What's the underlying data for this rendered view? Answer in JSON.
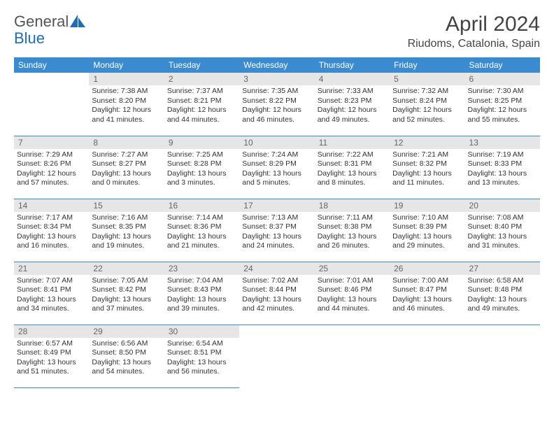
{
  "brand": {
    "part1": "General",
    "part2": "Blue"
  },
  "colors": {
    "header_bg": "#3b8bd0",
    "header_fg": "#ffffff",
    "daynum_bg": "#e6e6e6",
    "daynum_fg": "#666666",
    "body_text": "#333333",
    "rule": "#3b8bd0",
    "logo_gray": "#666666",
    "logo_blue": "#1f6db3"
  },
  "title": "April 2024",
  "location": "Riudoms, Catalonia, Spain",
  "weekdays": [
    "Sunday",
    "Monday",
    "Tuesday",
    "Wednesday",
    "Thursday",
    "Friday",
    "Saturday"
  ],
  "grid": {
    "rows": 5,
    "cols": 7
  },
  "cells": [
    {
      "r": 0,
      "c": 0,
      "empty": true
    },
    {
      "r": 0,
      "c": 1,
      "day": "1",
      "sunrise": "Sunrise: 7:38 AM",
      "sunset": "Sunset: 8:20 PM",
      "daylight": "Daylight: 12 hours and 41 minutes."
    },
    {
      "r": 0,
      "c": 2,
      "day": "2",
      "sunrise": "Sunrise: 7:37 AM",
      "sunset": "Sunset: 8:21 PM",
      "daylight": "Daylight: 12 hours and 44 minutes."
    },
    {
      "r": 0,
      "c": 3,
      "day": "3",
      "sunrise": "Sunrise: 7:35 AM",
      "sunset": "Sunset: 8:22 PM",
      "daylight": "Daylight: 12 hours and 46 minutes."
    },
    {
      "r": 0,
      "c": 4,
      "day": "4",
      "sunrise": "Sunrise: 7:33 AM",
      "sunset": "Sunset: 8:23 PM",
      "daylight": "Daylight: 12 hours and 49 minutes."
    },
    {
      "r": 0,
      "c": 5,
      "day": "5",
      "sunrise": "Sunrise: 7:32 AM",
      "sunset": "Sunset: 8:24 PM",
      "daylight": "Daylight: 12 hours and 52 minutes."
    },
    {
      "r": 0,
      "c": 6,
      "day": "6",
      "sunrise": "Sunrise: 7:30 AM",
      "sunset": "Sunset: 8:25 PM",
      "daylight": "Daylight: 12 hours and 55 minutes."
    },
    {
      "r": 1,
      "c": 0,
      "day": "7",
      "sunrise": "Sunrise: 7:29 AM",
      "sunset": "Sunset: 8:26 PM",
      "daylight": "Daylight: 12 hours and 57 minutes."
    },
    {
      "r": 1,
      "c": 1,
      "day": "8",
      "sunrise": "Sunrise: 7:27 AM",
      "sunset": "Sunset: 8:27 PM",
      "daylight": "Daylight: 13 hours and 0 minutes."
    },
    {
      "r": 1,
      "c": 2,
      "day": "9",
      "sunrise": "Sunrise: 7:25 AM",
      "sunset": "Sunset: 8:28 PM",
      "daylight": "Daylight: 13 hours and 3 minutes."
    },
    {
      "r": 1,
      "c": 3,
      "day": "10",
      "sunrise": "Sunrise: 7:24 AM",
      "sunset": "Sunset: 8:29 PM",
      "daylight": "Daylight: 13 hours and 5 minutes."
    },
    {
      "r": 1,
      "c": 4,
      "day": "11",
      "sunrise": "Sunrise: 7:22 AM",
      "sunset": "Sunset: 8:31 PM",
      "daylight": "Daylight: 13 hours and 8 minutes."
    },
    {
      "r": 1,
      "c": 5,
      "day": "12",
      "sunrise": "Sunrise: 7:21 AM",
      "sunset": "Sunset: 8:32 PM",
      "daylight": "Daylight: 13 hours and 11 minutes."
    },
    {
      "r": 1,
      "c": 6,
      "day": "13",
      "sunrise": "Sunrise: 7:19 AM",
      "sunset": "Sunset: 8:33 PM",
      "daylight": "Daylight: 13 hours and 13 minutes."
    },
    {
      "r": 2,
      "c": 0,
      "day": "14",
      "sunrise": "Sunrise: 7:17 AM",
      "sunset": "Sunset: 8:34 PM",
      "daylight": "Daylight: 13 hours and 16 minutes."
    },
    {
      "r": 2,
      "c": 1,
      "day": "15",
      "sunrise": "Sunrise: 7:16 AM",
      "sunset": "Sunset: 8:35 PM",
      "daylight": "Daylight: 13 hours and 19 minutes."
    },
    {
      "r": 2,
      "c": 2,
      "day": "16",
      "sunrise": "Sunrise: 7:14 AM",
      "sunset": "Sunset: 8:36 PM",
      "daylight": "Daylight: 13 hours and 21 minutes."
    },
    {
      "r": 2,
      "c": 3,
      "day": "17",
      "sunrise": "Sunrise: 7:13 AM",
      "sunset": "Sunset: 8:37 PM",
      "daylight": "Daylight: 13 hours and 24 minutes."
    },
    {
      "r": 2,
      "c": 4,
      "day": "18",
      "sunrise": "Sunrise: 7:11 AM",
      "sunset": "Sunset: 8:38 PM",
      "daylight": "Daylight: 13 hours and 26 minutes."
    },
    {
      "r": 2,
      "c": 5,
      "day": "19",
      "sunrise": "Sunrise: 7:10 AM",
      "sunset": "Sunset: 8:39 PM",
      "daylight": "Daylight: 13 hours and 29 minutes."
    },
    {
      "r": 2,
      "c": 6,
      "day": "20",
      "sunrise": "Sunrise: 7:08 AM",
      "sunset": "Sunset: 8:40 PM",
      "daylight": "Daylight: 13 hours and 31 minutes."
    },
    {
      "r": 3,
      "c": 0,
      "day": "21",
      "sunrise": "Sunrise: 7:07 AM",
      "sunset": "Sunset: 8:41 PM",
      "daylight": "Daylight: 13 hours and 34 minutes."
    },
    {
      "r": 3,
      "c": 1,
      "day": "22",
      "sunrise": "Sunrise: 7:05 AM",
      "sunset": "Sunset: 8:42 PM",
      "daylight": "Daylight: 13 hours and 37 minutes."
    },
    {
      "r": 3,
      "c": 2,
      "day": "23",
      "sunrise": "Sunrise: 7:04 AM",
      "sunset": "Sunset: 8:43 PM",
      "daylight": "Daylight: 13 hours and 39 minutes."
    },
    {
      "r": 3,
      "c": 3,
      "day": "24",
      "sunrise": "Sunrise: 7:02 AM",
      "sunset": "Sunset: 8:44 PM",
      "daylight": "Daylight: 13 hours and 42 minutes."
    },
    {
      "r": 3,
      "c": 4,
      "day": "25",
      "sunrise": "Sunrise: 7:01 AM",
      "sunset": "Sunset: 8:46 PM",
      "daylight": "Daylight: 13 hours and 44 minutes."
    },
    {
      "r": 3,
      "c": 5,
      "day": "26",
      "sunrise": "Sunrise: 7:00 AM",
      "sunset": "Sunset: 8:47 PM",
      "daylight": "Daylight: 13 hours and 46 minutes."
    },
    {
      "r": 3,
      "c": 6,
      "day": "27",
      "sunrise": "Sunrise: 6:58 AM",
      "sunset": "Sunset: 8:48 PM",
      "daylight": "Daylight: 13 hours and 49 minutes."
    },
    {
      "r": 4,
      "c": 0,
      "day": "28",
      "sunrise": "Sunrise: 6:57 AM",
      "sunset": "Sunset: 8:49 PM",
      "daylight": "Daylight: 13 hours and 51 minutes."
    },
    {
      "r": 4,
      "c": 1,
      "day": "29",
      "sunrise": "Sunrise: 6:56 AM",
      "sunset": "Sunset: 8:50 PM",
      "daylight": "Daylight: 13 hours and 54 minutes."
    },
    {
      "r": 4,
      "c": 2,
      "day": "30",
      "sunrise": "Sunrise: 6:54 AM",
      "sunset": "Sunset: 8:51 PM",
      "daylight": "Daylight: 13 hours and 56 minutes."
    },
    {
      "r": 4,
      "c": 3,
      "empty": true
    },
    {
      "r": 4,
      "c": 4,
      "empty": true
    },
    {
      "r": 4,
      "c": 5,
      "empty": true
    },
    {
      "r": 4,
      "c": 6,
      "empty": true
    }
  ]
}
